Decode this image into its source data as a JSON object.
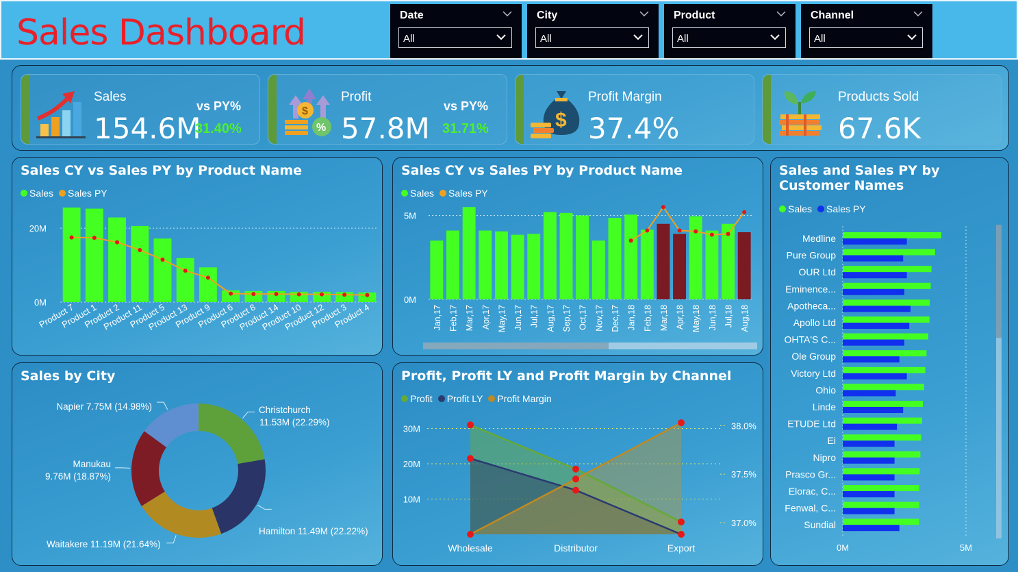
{
  "header": {
    "title": "Sales Dashboard"
  },
  "filters": [
    {
      "label": "Date",
      "value": "All"
    },
    {
      "label": "City",
      "value": "All"
    },
    {
      "label": "Product",
      "value": "All"
    },
    {
      "label": "Channel",
      "value": "All"
    }
  ],
  "kpis": {
    "sales": {
      "label": "Sales",
      "value": "154.6M",
      "vs_label": "vs PY%",
      "vs_value": "31.40%",
      "icon": "growth-chart-icon"
    },
    "profit": {
      "label": "Profit",
      "value": "57.8M",
      "vs_label": "vs PY%",
      "vs_value": "31.71%",
      "icon": "coins-dollar-icon"
    },
    "margin": {
      "label": "Profit Margin",
      "value": "37.4%",
      "icon": "money-bag-icon"
    },
    "sold": {
      "label": "Products Sold",
      "value": "67.6K",
      "icon": "coin-plant-icon"
    }
  },
  "colors": {
    "sales": "#44ff22",
    "sales_py": "#f0a020",
    "py_marker": "#e01818",
    "highlight_bar": "#7a1a22",
    "profit": "#66aa33",
    "profit_ly": "#2a3a70",
    "profit_margin": "#c08a20",
    "cust_py": "#1030ee"
  },
  "chart_data": [
    {
      "id": "product_chart",
      "type": "bar",
      "title": "Sales CY vs Sales PY by Product Name",
      "legend": [
        "Sales",
        "Sales PY"
      ],
      "categories": [
        "Product 7",
        "Product 1",
        "Product 2",
        "Product 11",
        "Product 5",
        "Product 13",
        "Product 9",
        "Product 6",
        "Product 8",
        "Product 14",
        "Product 10",
        "Product 12",
        "Product 3",
        "Product 4"
      ],
      "series": [
        {
          "name": "Sales",
          "values": [
            25.6,
            25.3,
            22.9,
            20.6,
            17.2,
            11.9,
            9.4,
            3.2,
            3.0,
            3.0,
            2.8,
            2.8,
            2.7,
            2.6
          ]
        },
        {
          "name": "Sales PY",
          "values": [
            17.5,
            17.4,
            16.2,
            14.1,
            11.5,
            8.5,
            6.6,
            2.3,
            2.2,
            2.2,
            2.1,
            2.1,
            2.0,
            1.9
          ]
        }
      ],
      "yticks": [
        0,
        20
      ],
      "ytick_labels": [
        "0M",
        "20M"
      ],
      "ylim": [
        0,
        28
      ]
    },
    {
      "id": "month_chart",
      "type": "bar",
      "title": "Sales CY vs Sales PY by Product Name",
      "legend": [
        "Sales",
        "Sales PY"
      ],
      "categories": [
        "Jan,17",
        "Feb,17",
        "Mar,17",
        "Apr,17",
        "May,17",
        "Jun,17",
        "Jul,17",
        "Aug,17",
        "Sep,17",
        "Oct,17",
        "Nov,17",
        "Dec,17",
        "Jan,18",
        "Feb,18",
        "Mar,18",
        "Apr,18",
        "May,18",
        "Jun,18",
        "Jul,18",
        "Aug,18"
      ],
      "series": [
        {
          "name": "Sales",
          "values": [
            3.5,
            4.1,
            5.5,
            4.1,
            4.05,
            3.85,
            3.9,
            5.2,
            5.15,
            5.0,
            3.5,
            4.85,
            5.05,
            4.15,
            4.5,
            3.9,
            4.95,
            4.1,
            4.5,
            4.0
          ]
        },
        {
          "name": "Sales PY",
          "values": [
            null,
            null,
            null,
            null,
            null,
            null,
            null,
            null,
            null,
            null,
            null,
            null,
            3.5,
            4.1,
            5.5,
            4.1,
            4.05,
            3.85,
            3.9,
            5.2
          ]
        }
      ],
      "highlighted": [
        "Mar,18",
        "Apr,18",
        "Aug,18"
      ],
      "yticks": [
        0,
        5
      ],
      "ytick_labels": [
        "0M",
        "5M"
      ],
      "ylim": [
        0,
        6
      ]
    },
    {
      "id": "customer_chart",
      "type": "bar",
      "orientation": "horizontal",
      "title": "Sales and Sales PY by Customer Names",
      "legend": [
        "Sales",
        "Sales PY"
      ],
      "categories": [
        "Medline",
        "Pure Group",
        "OUR Ltd",
        "Eminence...",
        "Apotheca...",
        "Apollo Ltd",
        "OHTA'S C...",
        "Ole Group",
        "Victory Ltd",
        "Ohio",
        "Linde",
        "ETUDE Ltd",
        "Ei",
        "Nipro",
        "Prasco Gr...",
        "Elorac, C...",
        "Fenwal, C...",
        "Sundial"
      ],
      "series": [
        {
          "name": "Sales",
          "values": [
            4.0,
            3.75,
            3.6,
            3.57,
            3.53,
            3.52,
            3.47,
            3.4,
            3.35,
            3.3,
            3.25,
            3.22,
            3.18,
            3.15,
            3.12,
            3.1,
            3.1,
            3.1
          ]
        },
        {
          "name": "Sales PY",
          "values": [
            2.6,
            2.45,
            2.6,
            2.5,
            2.75,
            2.7,
            2.5,
            2.3,
            2.6,
            2.15,
            2.45,
            2.2,
            2.1,
            2.1,
            2.1,
            2.1,
            2.1,
            2.3
          ]
        }
      ],
      "xticks": [
        0,
        5
      ],
      "xtick_labels": [
        "0M",
        "5M"
      ],
      "xlim": [
        0,
        5
      ]
    },
    {
      "id": "city_chart",
      "type": "pie",
      "title": "Sales by City",
      "slices": [
        {
          "label": "Christchurch",
          "value": 11.53,
          "pct": 22.29,
          "text": "11.53M (22.29%)",
          "color": "#5ea03a"
        },
        {
          "label": "Hamilton",
          "value": 11.49,
          "pct": 22.22,
          "text": "Hamilton 11.49M (22.22%)",
          "color": "#2a3466"
        },
        {
          "label": "Waitakere",
          "value": 11.19,
          "pct": 21.64,
          "text": "Waitakere 11.19M (21.64%)",
          "color": "#b28a22"
        },
        {
          "label": "Manukau",
          "value": 9.76,
          "pct": 18.87,
          "text": "9.76M (18.87%)",
          "color": "#7e1c26"
        },
        {
          "label": "Napier",
          "value": 7.75,
          "pct": 14.98,
          "text": "Napier 7.75M (14.98%)",
          "color": "#5f8fd0"
        }
      ]
    },
    {
      "id": "channel_chart",
      "type": "area",
      "title": "Profit, Profit LY and Profit Margin by Channel",
      "legend": [
        "Profit",
        "Profit LY",
        "Profit Margin"
      ],
      "categories": [
        "Wholesale",
        "Distributor",
        "Export"
      ],
      "series": [
        {
          "name": "Profit",
          "values": [
            31.0,
            18.5,
            3.5
          ],
          "axis": "left"
        },
        {
          "name": "Profit LY",
          "values": [
            21.5,
            12.5,
            0.0
          ],
          "axis": "left"
        },
        {
          "name": "Profit Margin",
          "values": [
            36.88,
            37.45,
            38.03
          ],
          "axis": "right"
        }
      ],
      "yticks": [
        10,
        20,
        30
      ],
      "ytick_labels": [
        "10M",
        "20M",
        "30M"
      ],
      "ylim": [
        0,
        33
      ],
      "y2ticks": [
        37.0,
        37.5,
        38.0
      ],
      "y2tick_labels": [
        "37.0%",
        "37.5%",
        "38.0%"
      ],
      "y2lim": [
        36.88,
        38.08
      ]
    }
  ]
}
